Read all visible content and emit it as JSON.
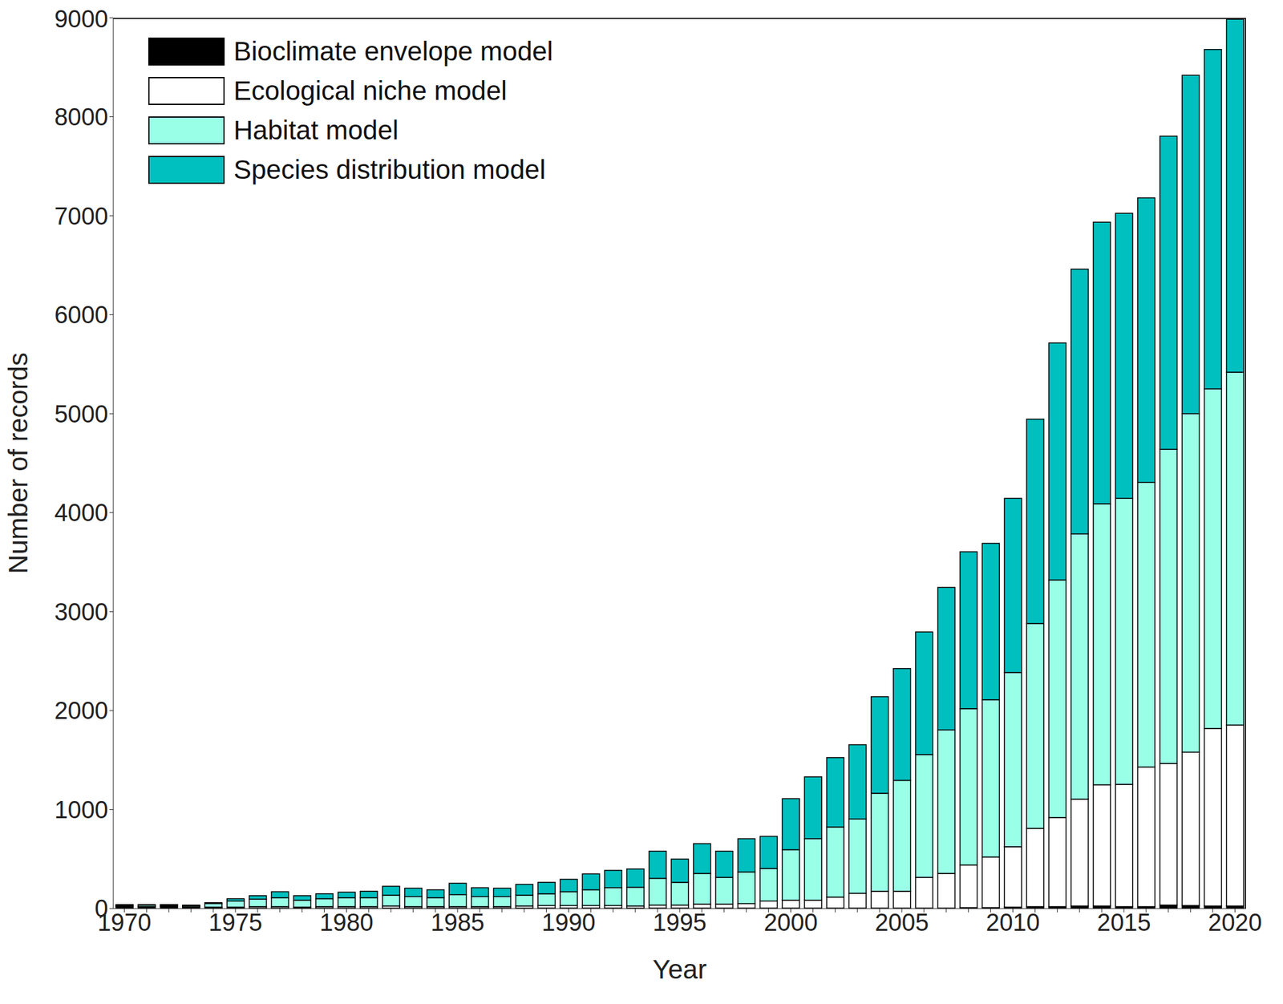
{
  "chart_data": {
    "type": "bar",
    "stacked": true,
    "legend": "top-left",
    "x_label": "Year",
    "y_label": "Number of records",
    "categories": [
      1970,
      null,
      null,
      null,
      null,
      1975,
      null,
      null,
      null,
      null,
      1980,
      null,
      null,
      null,
      null,
      1985,
      null,
      null,
      null,
      null,
      1990,
      null,
      null,
      null,
      null,
      1995,
      null,
      null,
      null,
      null,
      2000,
      null,
      null,
      null,
      null,
      2005,
      null,
      null,
      null,
      null,
      2010,
      null,
      null,
      null,
      null,
      2015,
      null,
      null,
      null,
      null,
      2020
    ],
    "ylim": [
      0,
      9000
    ],
    "yticks": [
      0,
      1000,
      2000,
      3000,
      4000,
      5000,
      6000,
      7000,
      8000,
      9000
    ],
    "series": [
      {
        "name": "Bioclimate envelope model",
        "color": "#000000",
        "values": [
          20,
          15,
          20,
          15,
          10,
          5,
          5,
          5,
          5,
          5,
          5,
          5,
          5,
          5,
          5,
          5,
          5,
          5,
          5,
          5,
          5,
          5,
          5,
          5,
          5,
          5,
          5,
          5,
          5,
          5,
          5,
          5,
          5,
          5,
          5,
          5,
          5,
          5,
          10,
          10,
          15,
          20,
          20,
          25,
          25,
          20,
          20,
          35,
          30,
          25,
          25
        ]
      },
      {
        "name": "Ecological niche model",
        "color": "#ffffff",
        "values": [
          5,
          5,
          5,
          5,
          5,
          10,
          15,
          15,
          10,
          15,
          15,
          15,
          20,
          15,
          15,
          15,
          15,
          15,
          20,
          25,
          25,
          25,
          25,
          20,
          30,
          30,
          40,
          40,
          45,
          70,
          80,
          80,
          110,
          150,
          170,
          170,
          310,
          350,
          430,
          510,
          610,
          790,
          900,
          1080,
          1225,
          1235,
          1410,
          1430,
          1550,
          1795,
          1830
        ]
      },
      {
        "name": "Habitat model",
        "color": "#99ffe6",
        "values": [
          10,
          15,
          10,
          10,
          35,
          60,
          75,
          90,
          70,
          80,
          90,
          90,
          110,
          100,
          90,
          120,
          100,
          100,
          110,
          120,
          140,
          160,
          180,
          190,
          270,
          230,
          310,
          270,
          320,
          330,
          510,
          620,
          710,
          750,
          990,
          1120,
          1240,
          1450,
          1580,
          1590,
          1760,
          2070,
          2400,
          2680,
          2840,
          2890,
          2875,
          3175,
          3420,
          3430,
          3565
        ]
      },
      {
        "name": "Species distribution model",
        "color": "#00bfbf",
        "values": [
          5,
          5,
          5,
          5,
          10,
          25,
          35,
          60,
          45,
          50,
          55,
          65,
          90,
          85,
          80,
          115,
          90,
          85,
          110,
          115,
          125,
          160,
          175,
          185,
          275,
          235,
          300,
          265,
          335,
          325,
          515,
          625,
          700,
          750,
          975,
          1130,
          1240,
          1440,
          1585,
          1580,
          1760,
          2065,
          2395,
          2675,
          2845,
          2880,
          2875,
          3165,
          3420,
          3430,
          3565
        ]
      }
    ]
  }
}
